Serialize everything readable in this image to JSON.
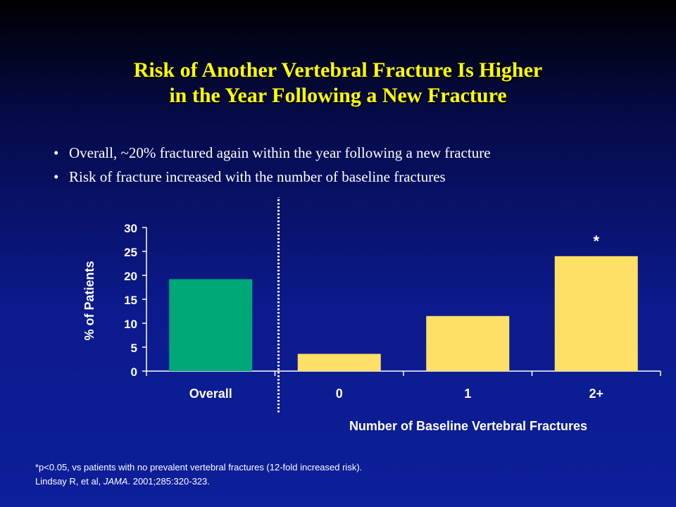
{
  "slide": {
    "title_line1": "Risk of Another Vertebral Fracture Is Higher",
    "title_line2": "in the Year Following a New Fracture",
    "bullets": [
      "Overall, ~20% fractured again within the year following a new fracture",
      "Risk of fracture increased with the number of baseline fractures"
    ],
    "footnote_line1": "*p<0.05, vs patients with no prevalent vertebral fractures (12-fold increased risk).",
    "footnote_line2_pre": "Lindsay R, et al, ",
    "footnote_line2_journal": "JAMA",
    "footnote_line2_post": ". 2001;285:320-323."
  },
  "colors": {
    "overall_bar": "#00a878",
    "baseline_bar": "#ffe066",
    "axis": "#ffffff",
    "divider": "#ffffff"
  },
  "chart_data": {
    "type": "bar",
    "categories": [
      "Overall",
      "0",
      "1",
      "2+"
    ],
    "values": [
      19.2,
      3.6,
      11.5,
      24
    ],
    "annotations": [
      "",
      "",
      "",
      "*"
    ],
    "ylabel": "% of Patients",
    "xlabel": "Number of Baseline Vertebral Fractures",
    "ylim": [
      0,
      30
    ],
    "yticks": [
      0,
      5,
      10,
      15,
      20,
      25,
      30
    ],
    "grid": false,
    "legend": "none"
  }
}
